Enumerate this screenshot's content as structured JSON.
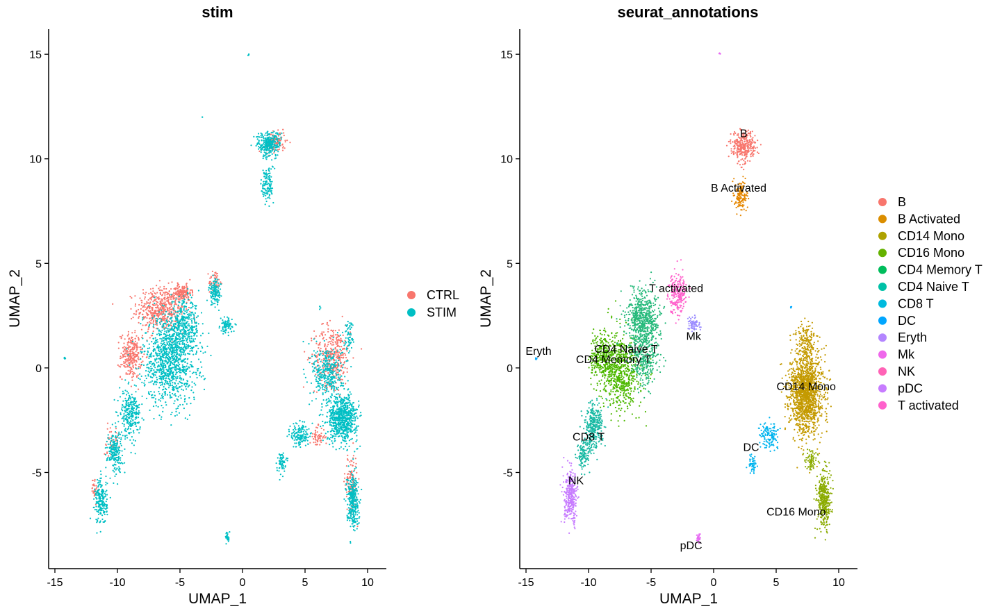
{
  "chart_data": [
    {
      "type": "scatter",
      "title": "stim",
      "xlabel": "UMAP_1",
      "ylabel": "UMAP_2",
      "xlim": [
        -15.5,
        11.5
      ],
      "ylim": [
        -9.6,
        16.2
      ],
      "xticks": [
        "-15",
        "-10",
        "-5",
        "0",
        "5",
        "10"
      ],
      "xtick_values": [
        -15,
        -10,
        -5,
        0,
        5,
        10
      ],
      "yticks": [
        "-5",
        "0",
        "5",
        "10",
        "15"
      ],
      "ytick_values": [
        -5,
        0,
        5,
        10,
        15
      ],
      "legend_position": "right",
      "legend": [
        {
          "label": "CTRL",
          "color": "#F8766D"
        },
        {
          "label": "STIM",
          "color": "#00BFC4"
        }
      ],
      "series": [
        {
          "name": "CTRL",
          "color": "#F8766D",
          "regions": [
            {
              "cx": -6.5,
              "cy": 2.8,
              "sx": 1.6,
              "sy": 0.9,
              "n": 500
            },
            {
              "cx": -8.9,
              "cy": 0.6,
              "sx": 0.7,
              "sy": 0.9,
              "n": 260
            },
            {
              "cx": -4.8,
              "cy": 3.6,
              "sx": 0.6,
              "sy": 0.3,
              "n": 140
            },
            {
              "cx": -2.2,
              "cy": 4.1,
              "sx": 0.4,
              "sy": 0.5,
              "n": 60
            },
            {
              "cx": 7.2,
              "cy": 0.6,
              "sx": 1.2,
              "sy": 1.2,
              "n": 360
            },
            {
              "cx": 6.0,
              "cy": -3.3,
              "sx": 0.5,
              "sy": 0.4,
              "n": 60
            },
            {
              "cx": 8.7,
              "cy": -5.5,
              "sx": 0.4,
              "sy": 1.2,
              "n": 120
            },
            {
              "cx": 2.6,
              "cy": 10.8,
              "sx": 0.7,
              "sy": 0.4,
              "n": 120
            },
            {
              "cx": -11.8,
              "cy": -5.8,
              "sx": 0.2,
              "sy": 0.5,
              "n": 30
            },
            {
              "cx": -10.5,
              "cy": -3.5,
              "sx": 0.5,
              "sy": 0.6,
              "n": 40
            }
          ]
        },
        {
          "name": "STIM",
          "color": "#00BFC4",
          "regions": [
            {
              "cx": -5.8,
              "cy": 0.4,
              "sx": 1.8,
              "sy": 1.8,
              "n": 1100
            },
            {
              "cx": -4.6,
              "cy": 2.0,
              "sx": 1.0,
              "sy": 1.0,
              "n": 300
            },
            {
              "cx": -9.0,
              "cy": -2.2,
              "sx": 0.7,
              "sy": 0.9,
              "n": 260
            },
            {
              "cx": -10.2,
              "cy": -4.0,
              "sx": 0.5,
              "sy": 0.8,
              "n": 200
            },
            {
              "cx": -11.3,
              "cy": -6.4,
              "sx": 0.4,
              "sy": 0.9,
              "n": 200
            },
            {
              "cx": -2.2,
              "cy": 3.6,
              "sx": 0.4,
              "sy": 0.5,
              "n": 120
            },
            {
              "cx": -1.3,
              "cy": 2.0,
              "sx": 0.4,
              "sy": 0.3,
              "n": 80
            },
            {
              "cx": 8.0,
              "cy": -2.4,
              "sx": 1.0,
              "sy": 0.9,
              "n": 700
            },
            {
              "cx": 6.8,
              "cy": -0.3,
              "sx": 1.0,
              "sy": 1.2,
              "n": 350
            },
            {
              "cx": 4.6,
              "cy": -3.2,
              "sx": 0.6,
              "sy": 0.5,
              "n": 150
            },
            {
              "cx": 3.1,
              "cy": -4.5,
              "sx": 0.3,
              "sy": 0.4,
              "n": 60
            },
            {
              "cx": 8.8,
              "cy": -6.3,
              "sx": 0.4,
              "sy": 1.1,
              "n": 300
            },
            {
              "cx": 8.5,
              "cy": 1.5,
              "sx": 0.3,
              "sy": 0.7,
              "n": 60
            },
            {
              "cx": 2.1,
              "cy": 10.7,
              "sx": 0.8,
              "sy": 0.5,
              "n": 280
            },
            {
              "cx": 2.0,
              "cy": 8.8,
              "sx": 0.4,
              "sy": 0.8,
              "n": 120
            },
            {
              "cx": -1.2,
              "cy": -8.1,
              "sx": 0.12,
              "sy": 0.2,
              "n": 25
            },
            {
              "cx": -14.2,
              "cy": 0.45,
              "sx": 0.05,
              "sy": 0.05,
              "n": 8
            },
            {
              "cx": 0.5,
              "cy": 15.0,
              "sx": 0.04,
              "sy": 0.05,
              "n": 5
            },
            {
              "cx": -3.2,
              "cy": 12.0,
              "sx": 0.02,
              "sy": 0.02,
              "n": 2
            },
            {
              "cx": 6.2,
              "cy": 2.9,
              "sx": 0.06,
              "sy": 0.06,
              "n": 5
            }
          ]
        }
      ]
    },
    {
      "type": "scatter",
      "title": "seurat_annotations",
      "xlabel": "UMAP_1",
      "ylabel": "UMAP_2",
      "xlim": [
        -15.5,
        11.5
      ],
      "ylim": [
        -9.6,
        16.2
      ],
      "xticks": [
        "-15",
        "-10",
        "-5",
        "0",
        "5",
        "10"
      ],
      "xtick_values": [
        -15,
        -10,
        -5,
        0,
        5,
        10
      ],
      "yticks": [
        "-5",
        "0",
        "5",
        "10",
        "15"
      ],
      "ytick_values": [
        -5,
        0,
        5,
        10,
        15
      ],
      "legend_position": "right",
      "legend": [
        {
          "label": "B",
          "color": "#F8766D"
        },
        {
          "label": "B Activated",
          "color": "#DB8E00"
        },
        {
          "label": "CD14 Mono",
          "color": "#AEA200"
        },
        {
          "label": "CD16 Mono",
          "color": "#64B200"
        },
        {
          "label": "CD4 Memory T",
          "color": "#00BD5C"
        },
        {
          "label": "CD4 Naive T",
          "color": "#00C1A7"
        },
        {
          "label": "CD8 T",
          "color": "#00BADE"
        },
        {
          "label": "DC",
          "color": "#00A6FF"
        },
        {
          "label": "Eryth",
          "color": "#B385FF"
        },
        {
          "label": "Mk",
          "color": "#EF67EB"
        },
        {
          "label": "NK",
          "color": "#FF63B6"
        },
        {
          "label": "pDC",
          "color": "#C77CFF"
        },
        {
          "label": "T activated",
          "color": "#FF61CC"
        }
      ],
      "cluster_labels": [
        {
          "text": "B",
          "x": 2.4,
          "y": 11.2
        },
        {
          "text": "B Activated",
          "x": 2.0,
          "y": 8.6
        },
        {
          "text": "T activated",
          "x": -3.0,
          "y": 3.8
        },
        {
          "text": "Mk",
          "x": -1.6,
          "y": 1.5
        },
        {
          "text": "Eryth",
          "x": -14.0,
          "y": 0.8
        },
        {
          "text": "CD4 Naive T",
          "x": -7.0,
          "y": 0.9
        },
        {
          "text": "CD4 Memory T",
          "x": -8.0,
          "y": 0.4
        },
        {
          "text": "CD14 Mono",
          "x": 7.4,
          "y": -0.9
        },
        {
          "text": "CD8 T",
          "x": -10.0,
          "y": -3.3
        },
        {
          "text": "DC",
          "x": 3.0,
          "y": -3.8
        },
        {
          "text": "NK",
          "x": -11.0,
          "y": -5.4
        },
        {
          "text": "CD16 Mono",
          "x": 6.6,
          "y": -6.9
        },
        {
          "text": "pDC",
          "x": -1.8,
          "y": -8.5
        }
      ],
      "series": [
        {
          "name": "CD4 Memory T",
          "color": "#4DB800",
          "regions": [
            {
              "cx": -7.5,
              "cy": -0.2,
              "sx": 1.3,
              "sy": 1.5,
              "n": 700
            },
            {
              "cx": -9.0,
              "cy": 0.6,
              "sx": 0.7,
              "sy": 0.9,
              "n": 250
            }
          ]
        },
        {
          "name": "CD4 Naive T",
          "color": "#24B97A",
          "regions": [
            {
              "cx": -5.6,
              "cy": 2.3,
              "sx": 1.1,
              "sy": 1.2,
              "n": 650
            },
            {
              "cx": -5.5,
              "cy": 0.3,
              "sx": 0.9,
              "sy": 1.0,
              "n": 250
            }
          ]
        },
        {
          "name": "CD8 T",
          "color": "#17B9A3",
          "regions": [
            {
              "cx": -9.6,
              "cy": -2.8,
              "sx": 0.6,
              "sy": 0.9,
              "n": 300
            },
            {
              "cx": -10.4,
              "cy": -4.2,
              "sx": 0.4,
              "sy": 0.6,
              "n": 120
            }
          ]
        },
        {
          "name": "NK",
          "color": "#C77CFF",
          "regions": [
            {
              "cx": -11.4,
              "cy": -6.2,
              "sx": 0.45,
              "sy": 1.0,
              "n": 320
            }
          ]
        },
        {
          "name": "T activated",
          "color": "#FF61CC",
          "regions": [
            {
              "cx": -2.9,
              "cy": 3.6,
              "sx": 0.6,
              "sy": 0.8,
              "n": 230
            }
          ]
        },
        {
          "name": "Mk",
          "color": "#9C8DFF",
          "regions": [
            {
              "cx": -1.6,
              "cy": 2.1,
              "sx": 0.4,
              "sy": 0.3,
              "n": 70
            }
          ]
        },
        {
          "name": "B",
          "color": "#F8766D",
          "regions": [
            {
              "cx": 2.4,
              "cy": 10.6,
              "sx": 0.8,
              "sy": 0.6,
              "n": 320
            }
          ]
        },
        {
          "name": "B Activated",
          "color": "#E58700",
          "regions": [
            {
              "cx": 2.2,
              "cy": 8.2,
              "sx": 0.4,
              "sy": 0.6,
              "n": 140
            }
          ]
        },
        {
          "name": "CD14 Mono",
          "color": "#C49A00",
          "regions": [
            {
              "cx": 7.4,
              "cy": -1.2,
              "sx": 1.1,
              "sy": 1.6,
              "n": 1500
            },
            {
              "cx": 7.4,
              "cy": 1.3,
              "sx": 0.6,
              "sy": 0.7,
              "n": 150
            }
          ]
        },
        {
          "name": "CD16 Mono",
          "color": "#8BAB00",
          "regions": [
            {
              "cx": 8.8,
              "cy": -6.3,
              "sx": 0.45,
              "sy": 1.1,
              "n": 380
            },
            {
              "cx": 7.8,
              "cy": -4.4,
              "sx": 0.4,
              "sy": 0.4,
              "n": 80
            }
          ]
        },
        {
          "name": "DC",
          "color": "#00B4EF",
          "regions": [
            {
              "cx": 4.5,
              "cy": -3.2,
              "sx": 0.6,
              "sy": 0.5,
              "n": 130
            },
            {
              "cx": 3.1,
              "cy": -4.6,
              "sx": 0.3,
              "sy": 0.4,
              "n": 50
            }
          ]
        },
        {
          "name": "pDC",
          "color": "#E76BF3",
          "regions": [
            {
              "cx": -1.2,
              "cy": -8.1,
              "sx": 0.12,
              "sy": 0.2,
              "n": 25
            },
            {
              "cx": 0.5,
              "cy": 15.0,
              "sx": 0.04,
              "sy": 0.05,
              "n": 5
            }
          ]
        },
        {
          "name": "Eryth",
          "color": "#00A9FF",
          "regions": [
            {
              "cx": -14.2,
              "cy": 0.45,
              "sx": 0.05,
              "sy": 0.05,
              "n": 8
            },
            {
              "cx": 6.2,
              "cy": 2.9,
              "sx": 0.06,
              "sy": 0.06,
              "n": 5
            }
          ]
        }
      ]
    }
  ]
}
